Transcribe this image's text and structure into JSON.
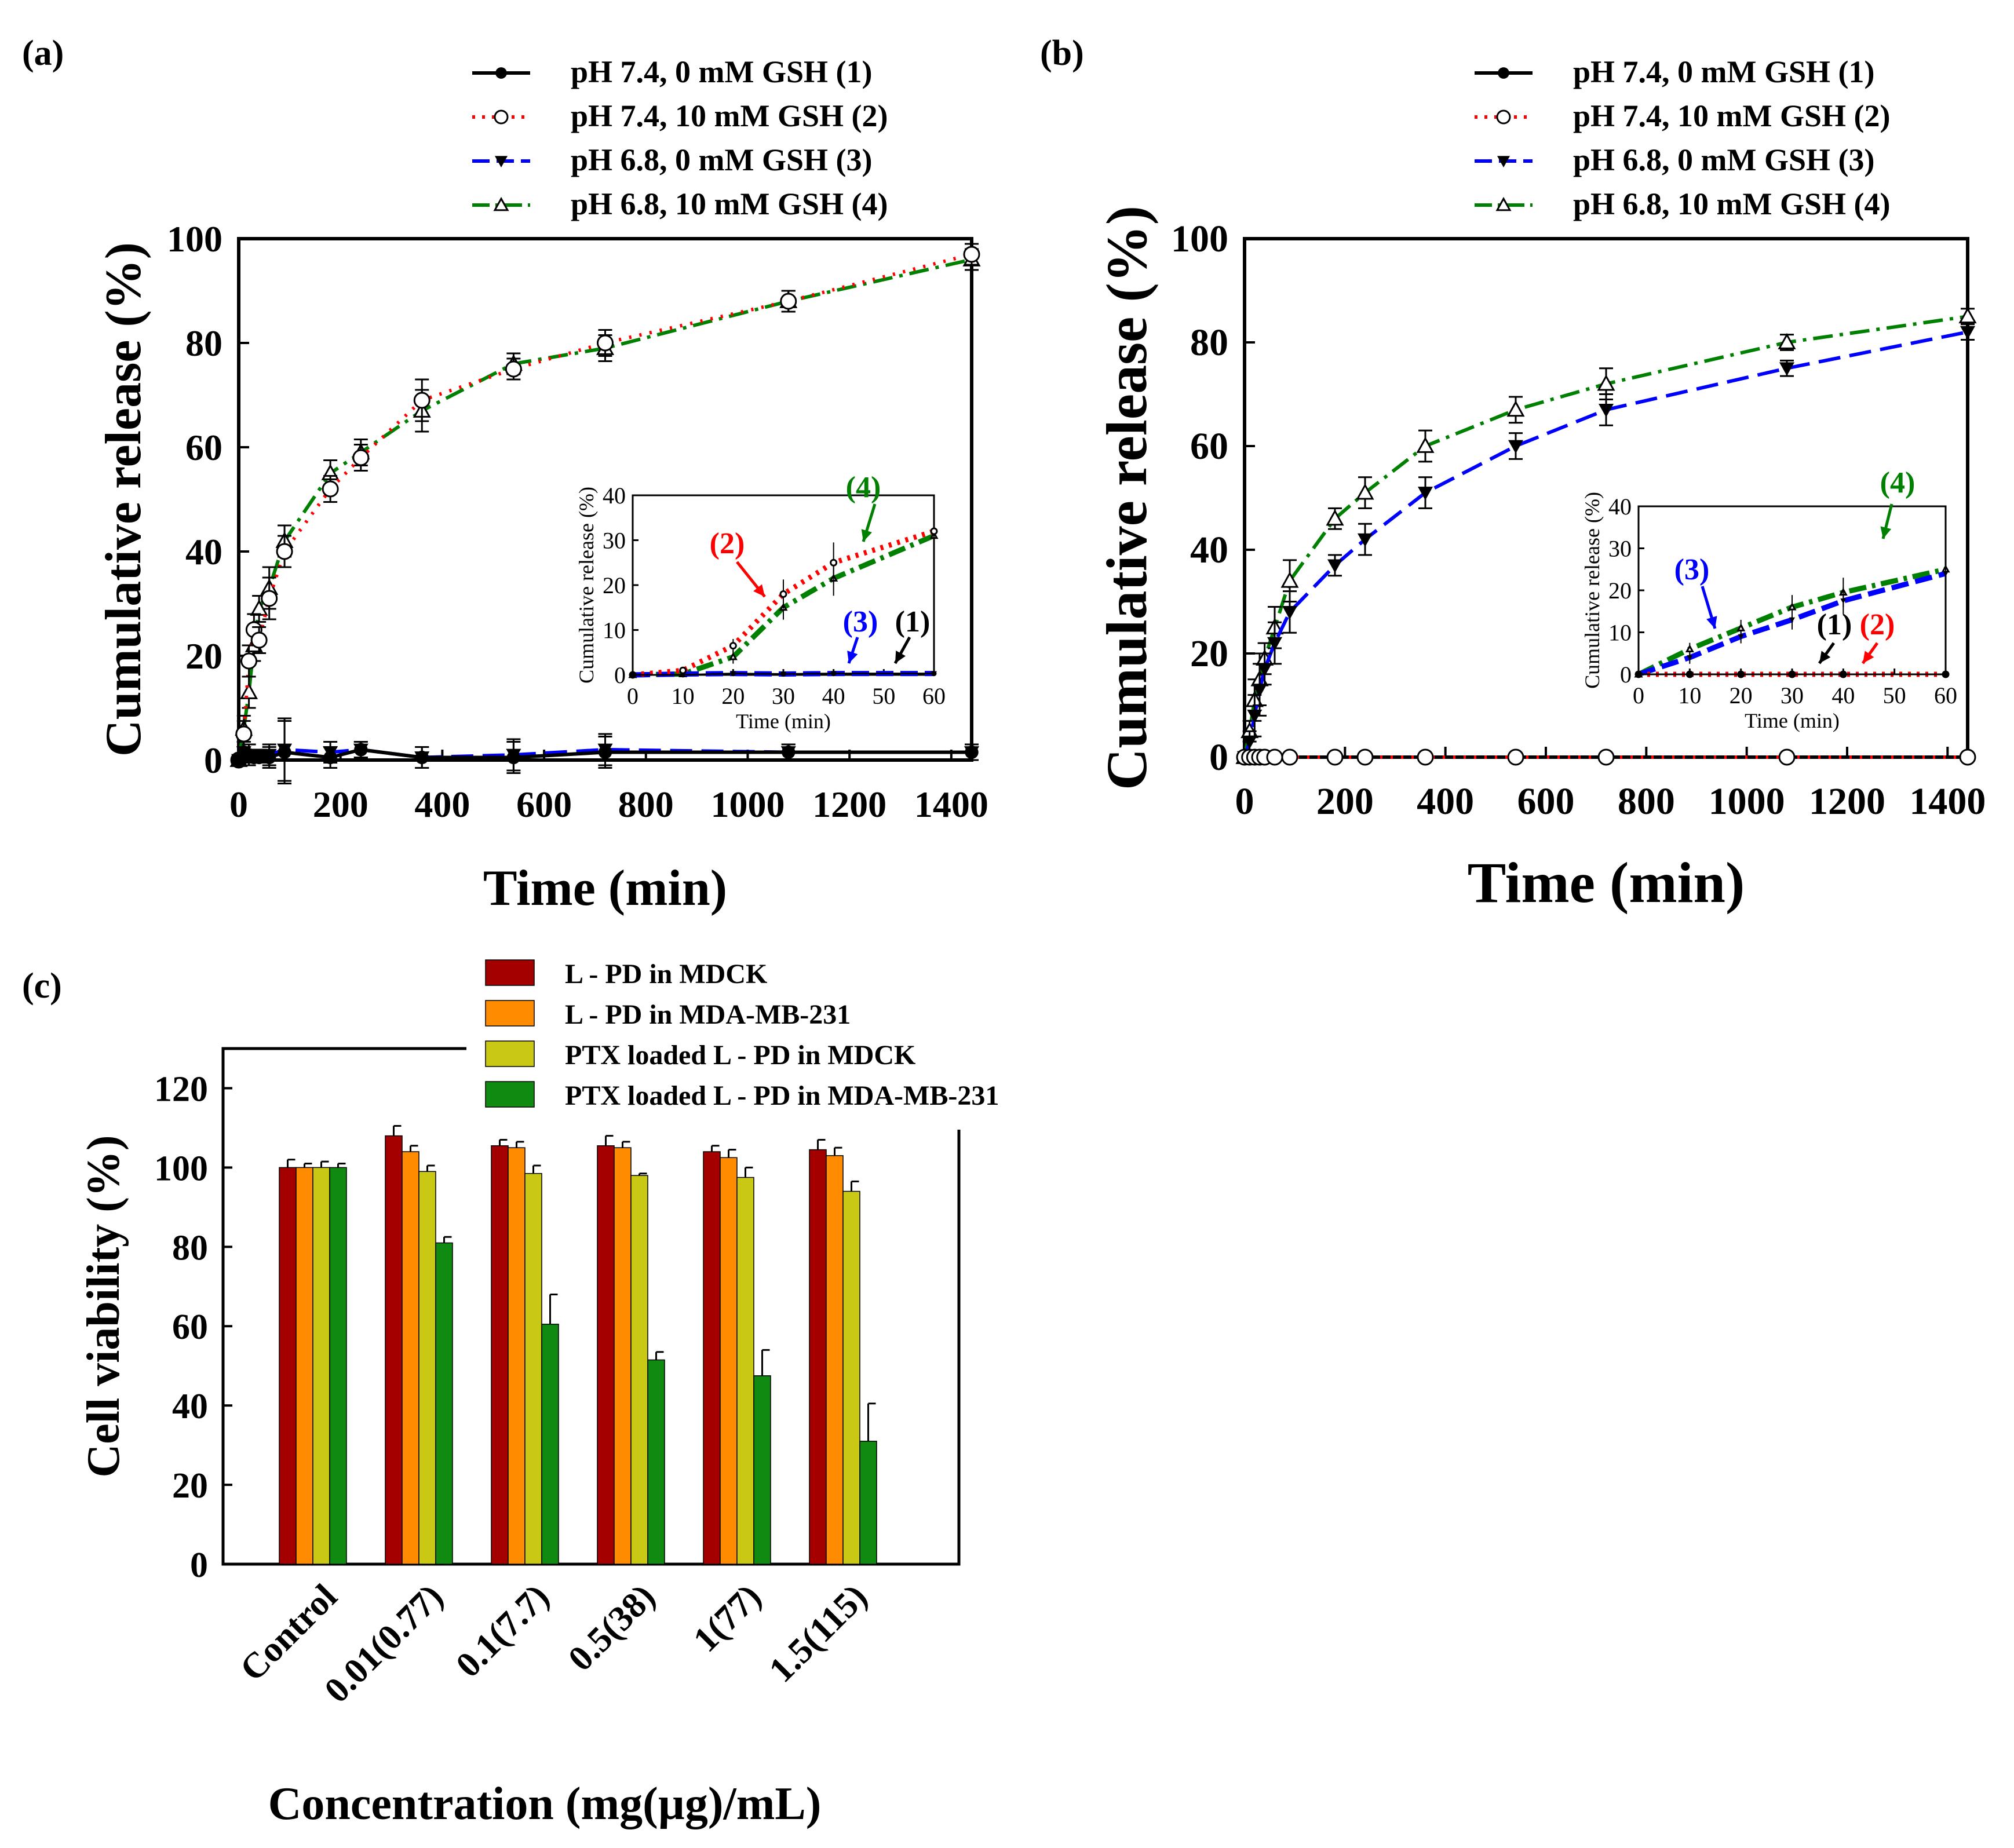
{
  "figure": {
    "panels": {
      "a": {
        "label": "(a)"
      },
      "b": {
        "label": "(b)"
      },
      "c": {
        "label": "(c)"
      }
    },
    "legend_release": [
      "pH 7.4, 0 mM GSH (1)",
      "pH 7.4, 10 mM GSH (2)",
      "pH 6.8, 0 mM GSH (3)",
      "pH 6.8, 10 mM GSH (4)"
    ],
    "legend_viability": [
      "L - PD in MDCK",
      "L - PD in MDA-MB-231",
      "PTX loaded L - PD in MDCK",
      "PTX loaded L - PD in MDA-MB-231"
    ],
    "colors": {
      "s1": "#000000",
      "s2": "#ff0000",
      "s3": "#0000ff",
      "s4": "#008000",
      "bar1": "#a40000",
      "bar2": "#ff8c00",
      "bar3": "#c8c815",
      "bar4": "#118a11"
    }
  },
  "chart_data": [
    {
      "id": "a",
      "type": "line",
      "xlabel": "Time (min)",
      "ylabel": "Cumulative release (%)",
      "xlim": [
        0,
        1440
      ],
      "ylim": [
        0,
        100
      ],
      "xticks": [
        0,
        200,
        400,
        600,
        800,
        1000,
        1200,
        1400
      ],
      "xtick_labels": [
        "0",
        "200",
        "400",
        "600",
        "800",
        "1000",
        "1200",
        "1400"
      ],
      "yticks": [
        0,
        20,
        40,
        60,
        80,
        100
      ],
      "x": [
        0,
        10,
        20,
        30,
        40,
        60,
        90,
        180,
        240,
        360,
        540,
        720,
        1080,
        1440
      ],
      "series": [
        {
          "name": "pH 7.4, 0 mM GSH (1)",
          "values": [
            0,
            1.5,
            1,
            0.5,
            0.5,
            0.5,
            1.5,
            0.5,
            2,
            0.5,
            0.5,
            1.5,
            1.5,
            1.5
          ]
        },
        {
          "name": "pH 7.4, 10 mM GSH (2)",
          "values": [
            0,
            5,
            19,
            25,
            23,
            31,
            40,
            52,
            58,
            69,
            75,
            80,
            88,
            97
          ]
        },
        {
          "name": "pH 6.8, 0 mM GSH (3)",
          "values": [
            0,
            1.5,
            1,
            1,
            1,
            1,
            2,
            1.5,
            2,
            0.5,
            1,
            2,
            1.5,
            1.5
          ]
        },
        {
          "name": "pH 6.8, 10 mM GSH (4)",
          "values": [
            0,
            6,
            13,
            22,
            29,
            33,
            42,
            55,
            59,
            67,
            76,
            79,
            88,
            96
          ]
        }
      ],
      "inset": {
        "xlabel": "Time (min)",
        "ylabel": "Cumulative release (%)",
        "xlim": [
          0,
          60
        ],
        "ylim": [
          0,
          40
        ],
        "xticks": [
          0,
          10,
          20,
          30,
          40,
          50,
          60
        ],
        "yticks": [
          0,
          10,
          20,
          30,
          40
        ],
        "x": [
          0,
          10,
          20,
          30,
          40,
          60
        ],
        "series": [
          {
            "name": "(1)",
            "values": [
              0,
              0,
              0.3,
              0.2,
              0.3,
              0.3
            ]
          },
          {
            "name": "(2)",
            "values": [
              0,
              1,
              6.5,
              18,
              25,
              32
            ]
          },
          {
            "name": "(3)",
            "values": [
              0,
              0.2,
              0.3,
              0.2,
              0.3,
              0.3
            ]
          },
          {
            "name": "(4)",
            "values": [
              0,
              0.2,
              4,
              15,
              21.5,
              31
            ]
          }
        ],
        "annotations": [
          "(2)",
          "(4)",
          "(3)",
          "(1)"
        ]
      }
    },
    {
      "id": "b",
      "type": "line",
      "xlabel": "Time (min)",
      "ylabel": "Cumulative release (%)",
      "xlim": [
        0,
        1440
      ],
      "ylim": [
        0,
        100
      ],
      "xticks": [
        0,
        200,
        400,
        600,
        800,
        1000,
        1200,
        1400
      ],
      "xtick_labels": [
        "0",
        "200",
        "400",
        "600",
        "800",
        "1000",
        "1200",
        "1400"
      ],
      "yticks": [
        0,
        20,
        40,
        60,
        80,
        100
      ],
      "x": [
        0,
        10,
        20,
        30,
        40,
        60,
        90,
        180,
        240,
        360,
        540,
        720,
        1080,
        1440
      ],
      "series": [
        {
          "name": "pH 7.4, 0 mM GSH (1)",
          "values": [
            0,
            0,
            0,
            0,
            0,
            0,
            0,
            0,
            0,
            0,
            0,
            0,
            0,
            0
          ]
        },
        {
          "name": "pH 7.4, 10 mM GSH (2)",
          "values": [
            0,
            0,
            0,
            0,
            0,
            0,
            0,
            0,
            0,
            0,
            0,
            0,
            0,
            0
          ]
        },
        {
          "name": "pH 6.8, 0 mM GSH (3)",
          "values": [
            0,
            3,
            8,
            13,
            17,
            22,
            28,
            37,
            42,
            51,
            60,
            67,
            75,
            82
          ]
        },
        {
          "name": "pH 6.8, 10 mM GSH (4)",
          "values": [
            0,
            5,
            11,
            15,
            19,
            25,
            34,
            46,
            51,
            60,
            67,
            72,
            80,
            85
          ]
        }
      ],
      "inset": {
        "xlabel": "Time (min)",
        "ylabel": "Cumulative release (%)",
        "xlim": [
          0,
          60
        ],
        "ylim": [
          0,
          40
        ],
        "xticks": [
          0,
          10,
          20,
          30,
          40,
          50,
          60
        ],
        "yticks": [
          0,
          10,
          20,
          30,
          40
        ],
        "x": [
          0,
          10,
          20,
          30,
          40,
          60
        ],
        "series": [
          {
            "name": "(1)",
            "values": [
              0,
              0,
              0,
              0,
              0,
              0
            ]
          },
          {
            "name": "(2)",
            "values": [
              0,
              0,
              0,
              0,
              0,
              0
            ]
          },
          {
            "name": "(3)",
            "values": [
              0,
              4,
              9,
              13,
              17.5,
              24
            ]
          },
          {
            "name": "(4)",
            "values": [
              0,
              6,
              11,
              16,
              19.5,
              25
            ]
          }
        ],
        "annotations": [
          "(3)",
          "(4)",
          "(1)",
          "(2)"
        ]
      }
    },
    {
      "id": "c",
      "type": "bar",
      "xlabel": "Concentration (mg(µg)/mL)",
      "ylabel": "Cell viability (%)",
      "ylim": [
        0,
        130
      ],
      "yticks": [
        0,
        20,
        40,
        60,
        80,
        100,
        120
      ],
      "categories": [
        "Control",
        "0.01(0.77)",
        "0.1(7.7)",
        "0.5(38)",
        "1(77)",
        "1.5(115)"
      ],
      "series": [
        {
          "name": "L - PD in MDCK",
          "values": [
            100,
            108,
            105.5,
            105.5,
            104,
            104.5
          ],
          "errors": [
            2,
            2.5,
            1.5,
            2.5,
            1.5,
            2.5
          ]
        },
        {
          "name": "L - PD in MDA-MB-231",
          "values": [
            100,
            104,
            105,
            105,
            102.5,
            103
          ],
          "errors": [
            1,
            1.5,
            1.5,
            1.5,
            2,
            2
          ]
        },
        {
          "name": "PTX loaded L - PD in MDCK",
          "values": [
            100,
            99,
            98.5,
            98,
            97.5,
            94
          ],
          "errors": [
            1.5,
            1.5,
            2,
            0.5,
            2.5,
            2.5
          ]
        },
        {
          "name": "PTX loaded L - PD in MDA-MB-231",
          "values": [
            100,
            81,
            60.5,
            51.5,
            47.5,
            31
          ],
          "errors": [
            1,
            1.5,
            7.5,
            2,
            6.5,
            9.5
          ]
        }
      ]
    }
  ]
}
